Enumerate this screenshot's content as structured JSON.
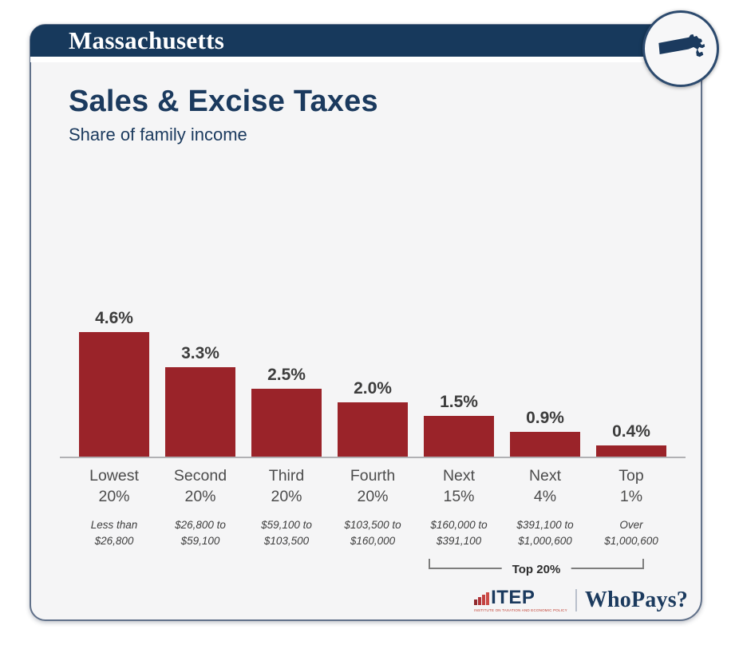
{
  "header": {
    "state": "Massachusetts"
  },
  "badge": {
    "icon": "massachusetts-state-icon"
  },
  "title": "Sales & Excise Taxes",
  "subtitle": "Share of family income",
  "chart_data": {
    "type": "bar",
    "title": "Sales & Excise Taxes",
    "subtitle": "Share of family income",
    "categories": [
      [
        "Lowest",
        "20%"
      ],
      [
        "Second",
        "20%"
      ],
      [
        "Third",
        "20%"
      ],
      [
        "Fourth",
        "20%"
      ],
      [
        "Next",
        "15%"
      ],
      [
        "Next",
        "4%"
      ],
      [
        "Top",
        "1%"
      ]
    ],
    "income_ranges": [
      [
        "Less than",
        "$26,800"
      ],
      [
        "$26,800 to",
        "$59,100"
      ],
      [
        "$59,100 to",
        "$103,500"
      ],
      [
        "$103,500 to",
        "$160,000"
      ],
      [
        "$160,000 to",
        "$391,100"
      ],
      [
        "$391,100 to",
        "$1,000,600"
      ],
      [
        "Over",
        "$1,000,600"
      ]
    ],
    "values": [
      4.6,
      3.3,
      2.5,
      2.0,
      1.5,
      0.9,
      0.4
    ],
    "value_labels": [
      "4.6%",
      "3.3%",
      "2.5%",
      "2.0%",
      "1.5%",
      "0.9%",
      "0.4%"
    ],
    "unit": "percent of family income",
    "ylim": [
      0,
      5
    ],
    "grid": false,
    "legend": false,
    "bar_color": "#9a2329",
    "annotation": {
      "label": "Top 20%",
      "spans_categories": [
        "Next 15%",
        "Next 4%",
        "Top 1%"
      ]
    }
  },
  "footer": {
    "itep_label": "ITEP",
    "itep_caption": "INSTITUTE ON TAXATION AND ECONOMIC POLICY",
    "whopays_label": "WhoPays?"
  },
  "colors": {
    "navy": "#17395c",
    "title_navy": "#1b3a5e",
    "bar_red": "#9a2329",
    "card_bg": "#f5f5f6",
    "axis_gray": "#b1b1b4"
  }
}
